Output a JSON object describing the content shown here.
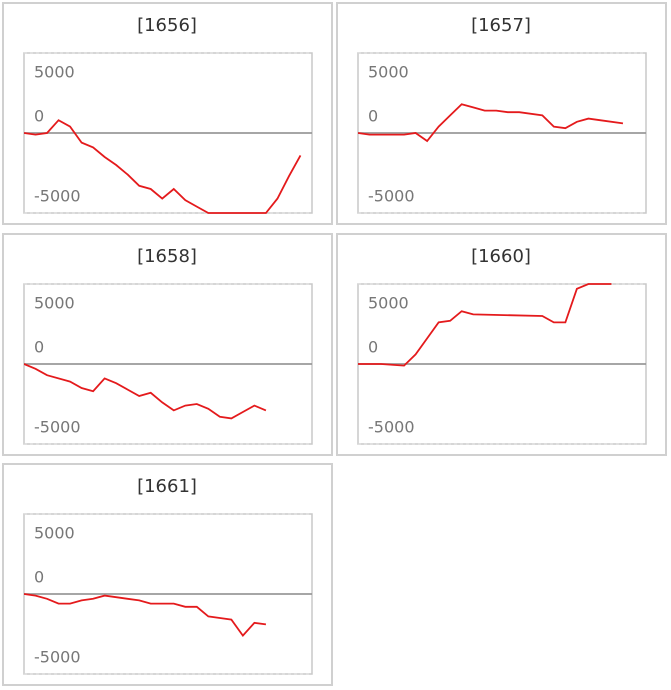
{
  "chart_data": [
    {
      "type": "line",
      "title": "[1656]",
      "color": "#e41a1c",
      "xlim": [
        0,
        25
      ],
      "ylim": [
        -5000,
        5000
      ],
      "yticks": [
        5000,
        0,
        -5000
      ],
      "x": [
        0,
        1,
        2,
        3,
        4,
        5,
        6,
        7,
        8,
        9,
        10,
        11,
        12,
        13,
        14,
        15,
        16,
        17,
        18,
        19,
        20,
        21,
        22,
        23,
        24
      ],
      "values": [
        0,
        -100,
        0,
        800,
        400,
        -600,
        -900,
        -1500,
        -2000,
        -2600,
        -3300,
        -3500,
        -4100,
        -3500,
        -4200,
        -4600,
        -5000,
        -5000,
        -5000,
        -5000,
        -5000,
        -5000,
        -4100,
        -2700,
        -1400
      ]
    },
    {
      "type": "line",
      "title": "[1657]",
      "color": "#e41a1c",
      "xlim": [
        0,
        25
      ],
      "ylim": [
        -5000,
        5000
      ],
      "yticks": [
        5000,
        0,
        -5000
      ],
      "x": [
        0,
        1,
        2,
        4,
        5,
        6,
        7,
        8,
        9,
        10,
        11,
        12,
        13,
        14,
        16,
        17,
        18,
        19,
        20,
        21,
        23
      ],
      "values": [
        0,
        -100,
        -100,
        -100,
        0,
        -500,
        400,
        1100,
        1800,
        1600,
        1400,
        1400,
        1300,
        1300,
        1100,
        400,
        300,
        700,
        900,
        800,
        600
      ]
    },
    {
      "type": "line",
      "title": "[1658]",
      "color": "#e41a1c",
      "xlim": [
        0,
        25
      ],
      "ylim": [
        -5000,
        5000
      ],
      "yticks": [
        5000,
        0,
        -5000
      ],
      "x": [
        0,
        1,
        2,
        4,
        5,
        6,
        7,
        8,
        9,
        10,
        11,
        12,
        13,
        14,
        15,
        16,
        17,
        18,
        19,
        20,
        21
      ],
      "values": [
        0,
        -300,
        -700,
        -1100,
        -1500,
        -1700,
        -900,
        -1200,
        -1600,
        -2000,
        -1800,
        -2400,
        -2900,
        -2600,
        -2500,
        -2800,
        -3300,
        -3400,
        -3000,
        -2600,
        -2900
      ]
    },
    {
      "type": "line",
      "title": "[1660]",
      "color": "#e41a1c",
      "xlim": [
        0,
        25
      ],
      "ylim": [
        -5000,
        5000
      ],
      "yticks": [
        5000,
        0,
        -5000
      ],
      "x": [
        0,
        2,
        4,
        5,
        6,
        7,
        8,
        9,
        10,
        16,
        17,
        18,
        19,
        20,
        22
      ],
      "values": [
        0,
        0,
        -100,
        600,
        1600,
        2600,
        2700,
        3300,
        3100,
        3000,
        2600,
        2600,
        4700,
        5000,
        5000
      ]
    },
    {
      "type": "line",
      "title": "[1661]",
      "color": "#e41a1c",
      "xlim": [
        0,
        25
      ],
      "ylim": [
        -5000,
        5000
      ],
      "yticks": [
        5000,
        0,
        -5000
      ],
      "x": [
        0,
        1,
        2,
        3,
        4,
        5,
        6,
        7,
        8,
        9,
        10,
        11,
        12,
        13,
        14,
        15,
        16,
        17,
        18,
        19,
        20,
        21
      ],
      "values": [
        0,
        -100,
        -300,
        -600,
        -600,
        -400,
        -300,
        -100,
        -200,
        -300,
        -400,
        -600,
        -600,
        -600,
        -800,
        -800,
        -1400,
        -1500,
        -1600,
        -2600,
        -1800,
        -1900
      ]
    }
  ]
}
